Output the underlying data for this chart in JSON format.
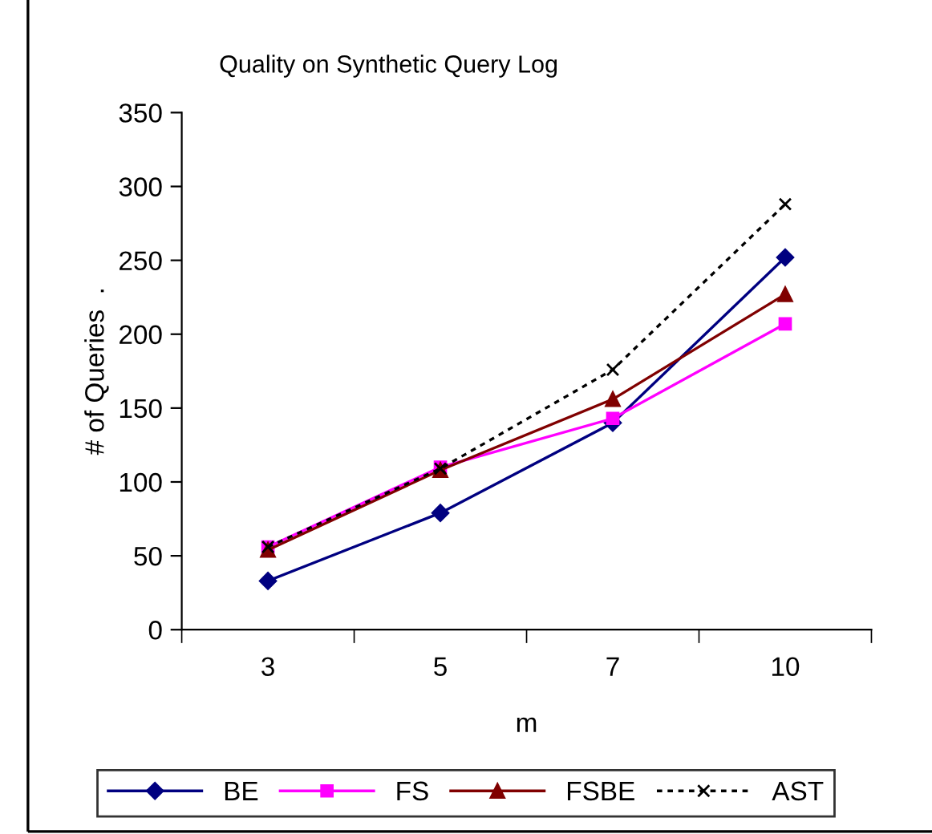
{
  "chart_data": {
    "type": "line",
    "title": "Quality on Synthetic Query Log",
    "xlabel": "m",
    "ylabel": "# of Queries  .",
    "categories": [
      "3",
      "5",
      "7",
      "10"
    ],
    "ylim": [
      0,
      350
    ],
    "yticks": [
      0,
      50,
      100,
      150,
      200,
      250,
      300,
      350
    ],
    "grid": false,
    "legend": "bottom",
    "series": [
      {
        "name": "BE",
        "color": "#000080",
        "marker": "diamond",
        "line_style": "solid",
        "values": [
          33,
          79,
          140,
          252
        ]
      },
      {
        "name": "FS",
        "color": "#ff00ff",
        "marker": "square",
        "line_style": "solid",
        "values": [
          56,
          110,
          143,
          207
        ]
      },
      {
        "name": "FSBE",
        "color": "#800000",
        "marker": "triangle",
        "line_style": "solid",
        "values": [
          54,
          108,
          156,
          227
        ]
      },
      {
        "name": "AST",
        "color": "#000000",
        "marker": "cross",
        "line_style": "dotted",
        "values": [
          56,
          109,
          176,
          288
        ]
      }
    ]
  }
}
